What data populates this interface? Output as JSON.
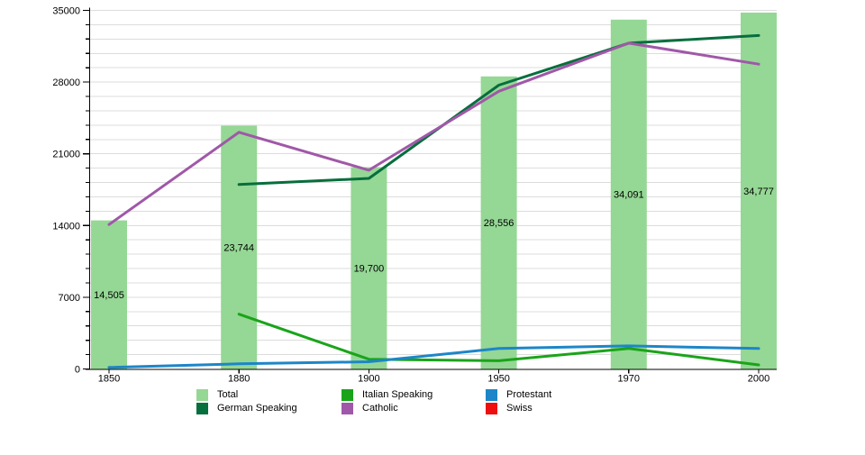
{
  "chart_data": {
    "type": "bar",
    "title": "",
    "categories": [
      "1850",
      "1880",
      "1900",
      "1950",
      "1970",
      "2000"
    ],
    "bar_series": {
      "name": "Total",
      "color": "#95d795",
      "values": [
        14505,
        23744,
        19700,
        28556,
        34091,
        34777
      ],
      "value_labels": [
        "14,505",
        "23,744",
        "19,700",
        "28,556",
        "34,091",
        "34,777"
      ]
    },
    "line_series": [
      {
        "name": "German Speaking",
        "color": "#076e3d",
        "values": [
          null,
          18000,
          18600,
          27700,
          31800,
          32550
        ]
      },
      {
        "name": "Italian Speaking",
        "color": "#1aa41a",
        "values": [
          null,
          5350,
          950,
          800,
          2000,
          400
        ]
      },
      {
        "name": "Catholic",
        "color": "#a058a8",
        "values": [
          14100,
          23100,
          19400,
          27100,
          31800,
          29750
        ]
      },
      {
        "name": "Protestant",
        "color": "#1d86c8",
        "values": [
          150,
          500,
          700,
          2000,
          2250,
          2000
        ]
      },
      {
        "name": "Swiss",
        "color": "#ee1010",
        "values": [
          null,
          null,
          null,
          null,
          null,
          null
        ]
      }
    ],
    "y_axis": {
      "min": 0,
      "max": 35000,
      "major_step": 7000,
      "minor_step": 1400,
      "tick_labels": [
        "0",
        "7000",
        "14000",
        "21000",
        "28000",
        "35000"
      ]
    },
    "xlabel": "",
    "ylabel": "",
    "grid": "horizontal minor gridlines on",
    "legend_position": "bottom",
    "gridline_color": "#dcdcdc",
    "axis_color": "#000000"
  },
  "legend": {
    "note": "two rows, three columns, below x axis"
  }
}
